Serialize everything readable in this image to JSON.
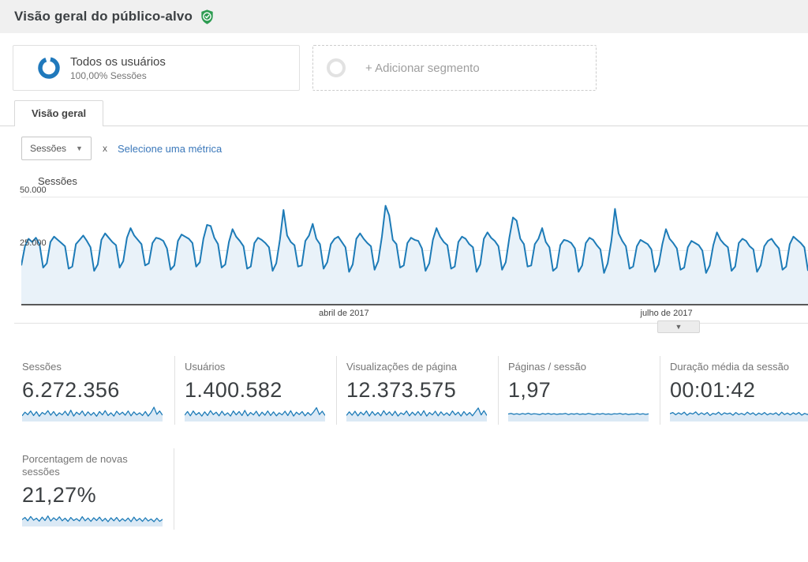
{
  "header": {
    "title": "Visão geral do público-alvo",
    "verified_badge_color": "#2d9c51"
  },
  "segments": {
    "all_users": {
      "title": "Todos os usuários",
      "subtitle": "100,00% Sessões",
      "donut_color": "#2079bc"
    },
    "add_segment": {
      "label": "+ Adicionar segmento"
    }
  },
  "tabs": [
    {
      "label": "Visão geral",
      "active": true
    }
  ],
  "metric_picker": {
    "selected": "Sessões",
    "separator": "x",
    "add_metric_link": "Selecione uma métrica"
  },
  "legend": {
    "series": "Sessões",
    "dot_color": "#1d7bb7"
  },
  "chart_data": {
    "type": "area",
    "series": [
      {
        "name": "Sessões",
        "values": [
          18000,
          27000,
          30500,
          29000,
          31000,
          28000,
          17000,
          19000,
          29000,
          31500,
          30000,
          28500,
          27000,
          16500,
          17500,
          28000,
          30000,
          32000,
          29500,
          26500,
          15500,
          18500,
          30000,
          33000,
          31000,
          29000,
          27500,
          17000,
          20000,
          31000,
          35500,
          32000,
          30000,
          28000,
          18000,
          19000,
          28500,
          31000,
          30500,
          29500,
          26000,
          16000,
          18000,
          29500,
          32500,
          31500,
          30500,
          28500,
          17500,
          19500,
          30500,
          37000,
          36500,
          31000,
          28000,
          17000,
          18500,
          29000,
          35000,
          31500,
          29500,
          27000,
          16500,
          17500,
          28500,
          31000,
          30000,
          28500,
          26500,
          15500,
          19000,
          30000,
          44000,
          32000,
          29000,
          27500,
          17500,
          18000,
          29500,
          32000,
          37500,
          30500,
          28000,
          16500,
          19500,
          28000,
          30500,
          31500,
          29000,
          26500,
          15000,
          18500,
          30500,
          33000,
          30500,
          28500,
          27000,
          16000,
          20000,
          31500,
          46000,
          41500,
          30000,
          28000,
          17000,
          18000,
          28500,
          31000,
          30000,
          29500,
          26000,
          15500,
          19000,
          30000,
          35500,
          31500,
          29000,
          27500,
          16500,
          17500,
          29000,
          31500,
          30500,
          28000,
          26500,
          15000,
          18500,
          30500,
          33500,
          31000,
          29500,
          27000,
          16000,
          19500,
          31000,
          40500,
          39000,
          30500,
          28000,
          17500,
          18000,
          28000,
          30500,
          35500,
          29000,
          26500,
          15500,
          17000,
          27500,
          30000,
          29500,
          28500,
          26000,
          15000,
          18000,
          28500,
          31000,
          30000,
          27500,
          25500,
          14500,
          19000,
          29500,
          44500,
          33000,
          29500,
          27000,
          16500,
          17500,
          27000,
          30000,
          29000,
          28000,
          25500,
          15000,
          18500,
          28000,
          35000,
          30500,
          28500,
          26000,
          16000,
          17000,
          26500,
          29500,
          28500,
          27500,
          25000,
          14500,
          18000,
          27500,
          33500,
          30000,
          28000,
          26500,
          15500,
          17500,
          28500,
          30500,
          29500,
          27000,
          25500,
          15000,
          18000,
          27000,
          29500,
          30500,
          28000,
          26000,
          16000,
          17500,
          28000,
          31500,
          30000,
          28500,
          26500,
          15500
        ]
      }
    ],
    "ylim": [
      0,
      50000
    ],
    "yticks": [
      25000,
      50000
    ],
    "ytick_labels": [
      "25.000",
      "50.000"
    ],
    "x_axis_labels": [
      {
        "label": "abril de 2017",
        "position": 0.41
      },
      {
        "label": "julho de 2017",
        "position": 0.82
      }
    ],
    "grid": true,
    "legend_position": "top-left",
    "line_color": "#1d7bb7",
    "fill_color": "#e9f2f9"
  },
  "scorecards": [
    {
      "label": "Sessões",
      "value": "6.272.356",
      "spark": [
        38,
        62,
        45,
        70,
        40,
        65,
        35,
        60,
        48,
        72,
        42,
        66,
        38,
        58,
        44,
        68,
        40,
        75,
        36,
        62,
        46,
        70,
        38,
        64,
        42,
        60,
        35,
        66,
        44,
        72,
        40,
        58,
        36,
        68,
        46,
        62,
        42,
        70,
        38,
        64,
        44,
        58,
        40,
        66,
        36,
        60,
        95,
        48,
        70,
        42
      ]
    },
    {
      "label": "Usuários",
      "value": "1.400.582",
      "spark": [
        42,
        66,
        38,
        70,
        44,
        60,
        36,
        64,
        40,
        72,
        46,
        62,
        38,
        68,
        42,
        58,
        36,
        70,
        44,
        66,
        40,
        74,
        38,
        60,
        44,
        68,
        36,
        62,
        42,
        70,
        40,
        64,
        38,
        58,
        44,
        68,
        40,
        72,
        36,
        62,
        46,
        66,
        38,
        60,
        42,
        64,
        92,
        46,
        68,
        40
      ]
    },
    {
      "label": "Visualizações de página",
      "value": "12.373.575",
      "spark": [
        40,
        64,
        42,
        68,
        38,
        62,
        44,
        70,
        36,
        66,
        42,
        60,
        38,
        72,
        44,
        64,
        40,
        68,
        36,
        58,
        46,
        70,
        38,
        62,
        42,
        66,
        40,
        72,
        36,
        60,
        44,
        68,
        38,
        64,
        42,
        58,
        40,
        70,
        44,
        62,
        36,
        66,
        42,
        60,
        38,
        64,
        90,
        44,
        72,
        40
      ]
    },
    {
      "label": "Páginas / sessão",
      "value": "1,97",
      "spark": [
        50,
        54,
        48,
        52,
        47,
        53,
        49,
        55,
        48,
        52,
        50,
        46,
        53,
        49,
        54,
        48,
        52,
        47,
        51,
        50,
        54,
        46,
        52,
        49,
        53,
        47,
        51,
        48,
        54,
        50,
        46,
        52,
        49,
        53,
        48,
        51,
        47,
        52,
        50,
        54,
        48,
        52,
        46,
        50,
        49,
        53,
        48,
        52,
        47,
        51
      ]
    },
    {
      "label": "Duração média da sessão",
      "value": "00:01:42",
      "spark": [
        52,
        60,
        45,
        58,
        48,
        62,
        42,
        56,
        50,
        64,
        44,
        58,
        46,
        60,
        40,
        54,
        48,
        62,
        44,
        58,
        50,
        56,
        42,
        60,
        46,
        54,
        44,
        62,
        48,
        58,
        42,
        56,
        46,
        60,
        44,
        54,
        48,
        58,
        42,
        62,
        46,
        56,
        44,
        58,
        48,
        60,
        42,
        54,
        46,
        58
      ]
    },
    {
      "label": "Porcentagem de novas sessões",
      "value": "21,27%",
      "spark": [
        45,
        60,
        38,
        66,
        42,
        55,
        35,
        62,
        40,
        70,
        36,
        58,
        42,
        64,
        38,
        55,
        34,
        60,
        40,
        52,
        36,
        65,
        38,
        56,
        34,
        58,
        40,
        62,
        36,
        54,
        32,
        58,
        38,
        60,
        34,
        52,
        36,
        56,
        32,
        62,
        38,
        54,
        34,
        58,
        36,
        50,
        32,
        55,
        34,
        48
      ]
    }
  ],
  "spark_style": {
    "line_color": "#1d7bb7",
    "fill_color": "#dbe9f5"
  }
}
